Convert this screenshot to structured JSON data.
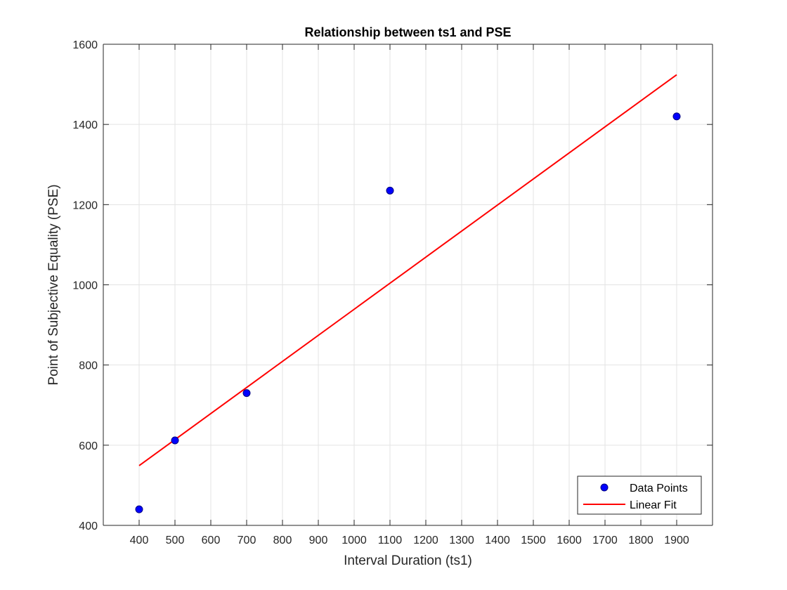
{
  "chart_data": {
    "type": "scatter",
    "title": "Relationship between ts1 and PSE",
    "xlabel": "Interval Duration (ts1)",
    "ylabel": "Point of Subjective Equality (PSE)",
    "xlim": [
      300,
      2000
    ],
    "ylim": [
      400,
      1600
    ],
    "xticks": [
      400,
      500,
      600,
      700,
      800,
      900,
      1000,
      1100,
      1200,
      1300,
      1400,
      1500,
      1600,
      1700,
      1800,
      1900
    ],
    "yticks": [
      400,
      600,
      800,
      1000,
      1200,
      1400,
      1600
    ],
    "grid": true,
    "legend_position": "bottom-right",
    "series": [
      {
        "name": "Data Points",
        "kind": "scatter",
        "color": "#0000ff",
        "x": [
          400,
          500,
          700,
          1100,
          1900
        ],
        "y": [
          440,
          612,
          730,
          1235,
          1420
        ]
      },
      {
        "name": "Linear Fit",
        "kind": "line",
        "color": "#ff0000",
        "x": [
          400,
          1900
        ],
        "y": [
          549,
          1524
        ]
      }
    ]
  }
}
